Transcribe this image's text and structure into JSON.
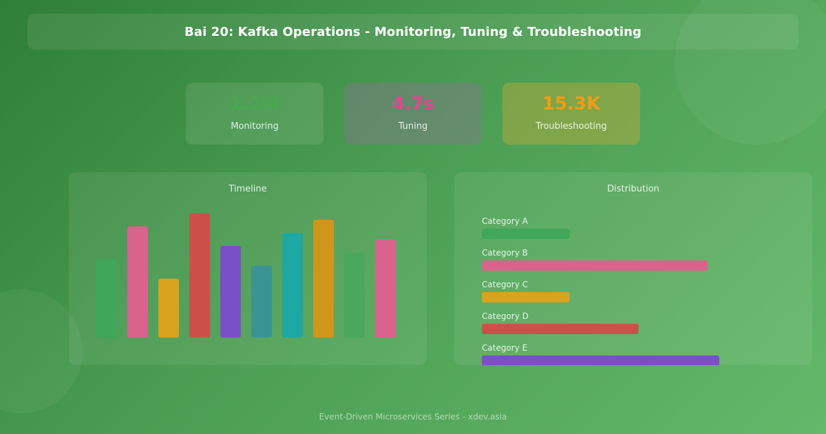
{
  "header": {
    "title": "Bai 20: Kafka Operations - Monitoring, Tuning & Troubleshooting"
  },
  "stats": [
    {
      "value": "1.2M",
      "label": "Monitoring",
      "color": "#49a84f"
    },
    {
      "value": "4.7s",
      "label": "Tuning",
      "color": "#e3468f"
    },
    {
      "value": "15.3K",
      "label": "Troubleshooting",
      "color": "#ef9d16"
    }
  ],
  "footer": {
    "text": "Event-Driven Microservices Series - xdev.asia"
  },
  "chart_data": [
    {
      "type": "bar",
      "title": "Timeline",
      "orientation": "vertical",
      "values": [
        60,
        85,
        45,
        95,
        70,
        55,
        80,
        90,
        65,
        75
      ],
      "ylim": [
        0,
        100
      ],
      "grid": false,
      "colors": [
        "#3fa65a",
        "#d9638c",
        "#d9a21f",
        "#cc5049",
        "#7a50c9",
        "#3a9493",
        "#1ea7a3",
        "#cf961b",
        "#49a85e",
        "#d9638c"
      ]
    },
    {
      "type": "bar",
      "title": "Distribution",
      "orientation": "horizontal",
      "categories": [
        "Category A",
        "Category B",
        "Category C",
        "Category D",
        "Category E"
      ],
      "values": [
        37,
        95,
        37,
        66,
        100
      ],
      "xlim": [
        0,
        100
      ],
      "grid": false,
      "colors": [
        "#3fa65a",
        "#d9638c",
        "#d9a21f",
        "#cc5049",
        "#7a50c9"
      ]
    }
  ]
}
